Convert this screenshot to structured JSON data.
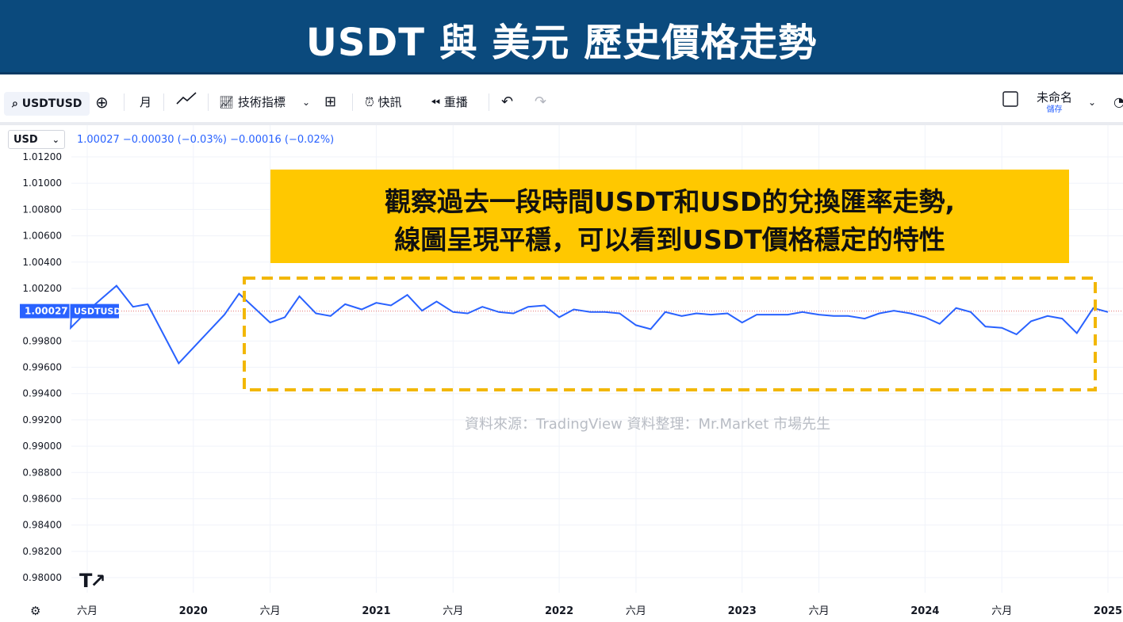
{
  "banner": {
    "title": "USDT 與 美元 歷史價格走勢"
  },
  "toolbar": {
    "symbol": "USDTUSD",
    "interval": "月",
    "indicators_label": "技術指標",
    "alert_label": "快訊",
    "replay_label": "重播",
    "layout_name": "未命名",
    "save_label": "儲存"
  },
  "chart_header": {
    "currency": "USD",
    "ohlc_text": "1.00027 −0.00030 (−0.03%) −0.00016 (−0.02%)"
  },
  "price_label": {
    "value": "1.00027",
    "symbol": "USDTUSD"
  },
  "callout": {
    "line1": "觀察過去一段時間USDT和USD的兌換匯率走勢,",
    "line2": "線圖呈現平穩，可以看到USDT價格穩定的特性"
  },
  "source_note": "資料來源：TradingView  資料整理：Mr.Market 市場先生",
  "colors": {
    "banner": "#0b4a7d",
    "line": "#2962ff",
    "callout": "#ffc800",
    "dash": "#f2b705"
  },
  "chart_data": {
    "type": "line",
    "series": [
      {
        "values": [
          [
            2019.33,
            0.999
          ],
          [
            2019.42,
            1.00027
          ],
          [
            2019.58,
            1.0022
          ],
          [
            2019.67,
            1.0006
          ],
          [
            2019.75,
            1.0008
          ],
          [
            2019.92,
            0.9963
          ],
          [
            2020.17,
            1.0
          ],
          [
            2020.25,
            1.0016
          ],
          [
            2020.42,
            0.9994
          ],
          [
            2020.5,
            0.9998
          ],
          [
            2020.58,
            1.0014
          ],
          [
            2020.67,
            1.0001
          ],
          [
            2020.75,
            0.9999
          ],
          [
            2020.83,
            1.0008
          ],
          [
            2020.92,
            1.0004
          ],
          [
            2021.0,
            1.0009
          ],
          [
            2021.08,
            1.0007
          ],
          [
            2021.17,
            1.0015
          ],
          [
            2021.25,
            1.0003
          ],
          [
            2021.33,
            1.001
          ],
          [
            2021.42,
            1.0002
          ],
          [
            2021.5,
            1.0001
          ],
          [
            2021.58,
            1.0006
          ],
          [
            2021.67,
            1.0002
          ],
          [
            2021.75,
            1.0001
          ],
          [
            2021.83,
            1.0006
          ],
          [
            2021.92,
            1.0007
          ],
          [
            2022.0,
            0.9998
          ],
          [
            2022.08,
            1.0004
          ],
          [
            2022.17,
            1.0002
          ],
          [
            2022.25,
            1.0002
          ],
          [
            2022.33,
            1.0001
          ],
          [
            2022.42,
            0.9992
          ],
          [
            2022.5,
            0.9989
          ],
          [
            2022.58,
            1.0002
          ],
          [
            2022.67,
            0.9999
          ],
          [
            2022.75,
            1.0001
          ],
          [
            2022.83,
            1.0
          ],
          [
            2022.92,
            1.0001
          ],
          [
            2023.0,
            0.9994
          ],
          [
            2023.08,
            1.0
          ],
          [
            2023.17,
            1.0
          ],
          [
            2023.25,
            1.0
          ],
          [
            2023.33,
            1.0002
          ],
          [
            2023.42,
            1.0
          ],
          [
            2023.5,
            0.9999
          ],
          [
            2023.58,
            0.9999
          ],
          [
            2023.67,
            0.9997
          ],
          [
            2023.75,
            1.0001
          ],
          [
            2023.83,
            1.0003
          ],
          [
            2023.92,
            1.0001
          ],
          [
            2024.0,
            0.9998
          ],
          [
            2024.08,
            0.9993
          ],
          [
            2024.17,
            1.0005
          ],
          [
            2024.25,
            1.0002
          ],
          [
            2024.33,
            0.9991
          ],
          [
            2024.42,
            0.999
          ],
          [
            2024.5,
            0.9985
          ],
          [
            2024.58,
            0.9995
          ],
          [
            2024.67,
            0.9999
          ],
          [
            2024.75,
            0.9997
          ],
          [
            2024.83,
            0.9986
          ],
          [
            2024.92,
            1.0005
          ],
          [
            2025.0,
            1.0002
          ]
        ]
      }
    ],
    "ylim": [
      0.98,
      1.012
    ],
    "y_ticks": [
      "1.01200",
      "1.01000",
      "1.00800",
      "1.00600",
      "1.00400",
      "1.00200",
      "1.00000",
      "0.99800",
      "0.99600",
      "0.99400",
      "0.99200",
      "0.99000",
      "0.98800",
      "0.98600",
      "0.98400",
      "0.98200",
      "0.98000"
    ],
    "x_ticks": [
      {
        "label": "六月",
        "bold": false,
        "x": 2019.42
      },
      {
        "label": "2020",
        "bold": true,
        "x": 2020.0
      },
      {
        "label": "六月",
        "bold": false,
        "x": 2020.42
      },
      {
        "label": "2021",
        "bold": true,
        "x": 2021.0
      },
      {
        "label": "六月",
        "bold": false,
        "x": 2021.42
      },
      {
        "label": "2022",
        "bold": true,
        "x": 2022.0
      },
      {
        "label": "六月",
        "bold": false,
        "x": 2022.42
      },
      {
        "label": "2023",
        "bold": true,
        "x": 2023.0
      },
      {
        "label": "六月",
        "bold": false,
        "x": 2023.42
      },
      {
        "label": "2024",
        "bold": true,
        "x": 2024.0
      },
      {
        "label": "六月",
        "bold": false,
        "x": 2024.42
      },
      {
        "label": "2025",
        "bold": true,
        "x": 2025.0
      }
    ],
    "current_value": 1.00027,
    "grid": true
  }
}
